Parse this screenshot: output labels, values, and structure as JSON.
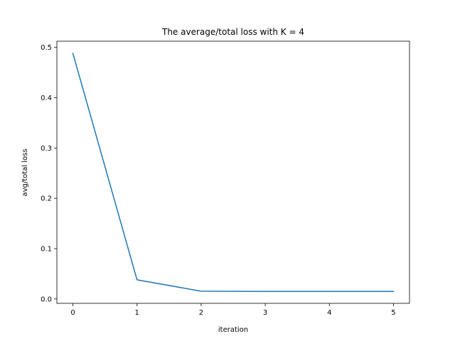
{
  "chart_data": {
    "type": "line",
    "title": "The average/total loss with K = 4",
    "xlabel": "iteration",
    "ylabel": "avg/total loss",
    "x": [
      0,
      1,
      2,
      3,
      4,
      5
    ],
    "xticks": [
      "0",
      "1",
      "2",
      "3",
      "4",
      "5"
    ],
    "yticks": [
      "0.0",
      "0.1",
      "0.2",
      "0.3",
      "0.4",
      "0.5"
    ],
    "xlim": [
      -0.25,
      5.25
    ],
    "ylim": [
      -0.0087,
      0.5123
    ],
    "grid": false,
    "legend": false,
    "series": [
      {
        "values": [
          0.488,
          0.038,
          0.0155,
          0.015,
          0.015,
          0.015
        ],
        "color": "#1f77b4"
      }
    ]
  }
}
